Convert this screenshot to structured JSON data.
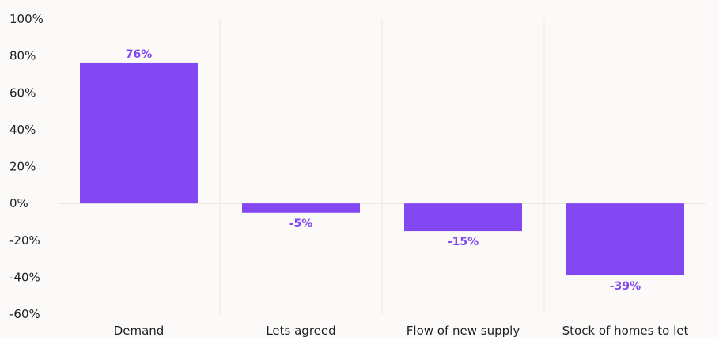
{
  "chart_data": {
    "type": "bar",
    "categories": [
      "Demand",
      "Lets agreed",
      "Flow of new supply",
      "Stock of homes to let"
    ],
    "values": [
      76,
      -5,
      -15,
      -39
    ],
    "data_labels": [
      "76%",
      "-5%",
      "-15%",
      "-39%"
    ],
    "title": "",
    "xlabel": "",
    "ylabel": "",
    "ylim": [
      -60,
      100
    ],
    "yticks": [
      100,
      80,
      60,
      40,
      20,
      0,
      -20,
      -40,
      -60
    ],
    "ytick_labels": [
      "100%",
      "80%",
      "60%",
      "40%",
      "20%",
      "0%",
      "-20%",
      "-40%",
      "-60%"
    ],
    "grid": "vertical",
    "legend": "none",
    "bar_color": "#8348f2",
    "label_color": "#8348f2"
  }
}
